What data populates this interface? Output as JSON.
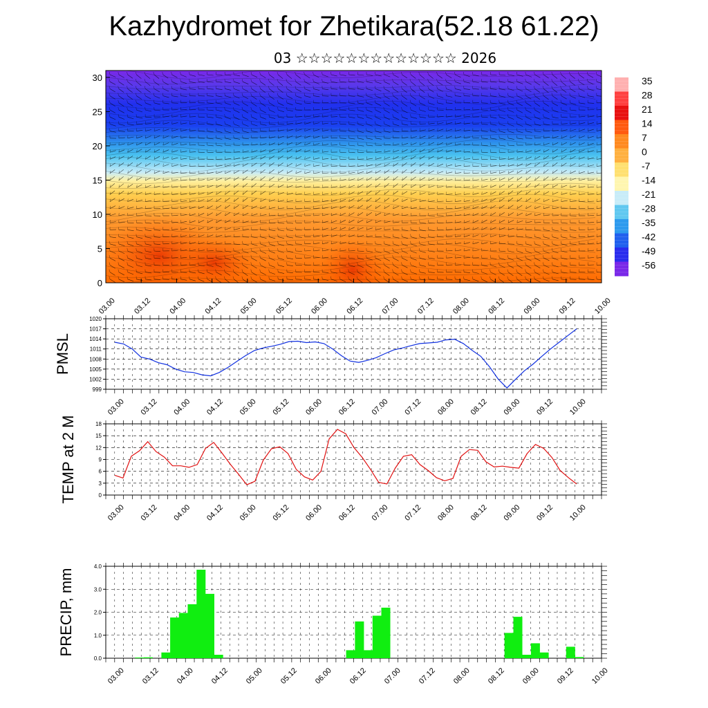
{
  "header": {
    "title": "Kazhydromet for Zhetikara(52.18 61.22)",
    "subtitle": "03 ☆☆☆☆☆☆☆☆☆☆☆☆☆ 2026"
  },
  "chart_data": [
    {
      "type": "heatmap",
      "description_panel": "upper-air temperature cross-section with wind barbs",
      "x_ticks": [
        "03.00",
        "03.12",
        "04.00",
        "04.12",
        "05.00",
        "05.12",
        "06.00",
        "06.12",
        "07.00",
        "07.12",
        "08.00",
        "08.12",
        "09.00",
        "09.12",
        "10.00"
      ],
      "y_ticks": [
        "0",
        "5",
        "10",
        "15",
        "20",
        "25",
        "30"
      ],
      "ylim": [
        0,
        31
      ],
      "colorbar_labels": [
        "35",
        "28",
        "21",
        "14",
        "7",
        "0",
        "-7",
        "-14",
        "-21",
        "-28",
        "-35",
        "-42",
        "-49",
        "-56"
      ],
      "colors": {
        "warm": "#ff7a10",
        "yellow": "#ffe070",
        "cool": "#29a8ee",
        "cold": "#2033ee",
        "coldest": "#7a28e8"
      }
    },
    {
      "type": "line",
      "ylabel": "PMSL",
      "ylim": [
        999,
        1020
      ],
      "y_ticks": [
        "999",
        "1002",
        "1005",
        "1008",
        "1011",
        "1014",
        "1017",
        "1020"
      ],
      "x_ticks": [
        "03.00",
        "03.12",
        "04.00",
        "04.12",
        "05.00",
        "05.12",
        "06.00",
        "06.12",
        "07.00",
        "07.12",
        "08.00",
        "08.12",
        "09.00",
        "09.12",
        "10.00"
      ],
      "color": "#1030e0",
      "series": [
        {
          "values": [
            1013.0,
            1012.5,
            1011.0,
            1008.6,
            1008.0,
            1006.9,
            1006.3,
            1005.0,
            1004.2,
            1004.0,
            1003.3,
            1003.0,
            1004.0,
            1005.5,
            1007.3,
            1009.0,
            1010.5,
            1011.3,
            1011.8,
            1012.4,
            1013.2,
            1013.3,
            1012.9,
            1013.1,
            1012.6,
            1011.0,
            1009.0,
            1007.4,
            1007.0,
            1007.6,
            1008.4,
            1009.6,
            1010.7,
            1011.3,
            1012.0,
            1012.6,
            1012.8,
            1013.0,
            1013.7,
            1013.9,
            1012.6,
            1010.6,
            1008.8,
            1005.7,
            1002.0,
            999.4,
            1002.0,
            1004.5,
            1006.5,
            1008.8,
            1011.0,
            1013.0,
            1015.0,
            1017.0
          ]
        }
      ]
    },
    {
      "type": "line",
      "ylabel": "TEMP at 2 M",
      "ylim": [
        0,
        18
      ],
      "y_ticks": [
        "0",
        "3",
        "6",
        "9",
        "12",
        "15",
        "18"
      ],
      "x_ticks": [
        "03.00",
        "03.12",
        "04.00",
        "04.12",
        "05.00",
        "05.12",
        "06.00",
        "06.12",
        "07.00",
        "07.12",
        "08.00",
        "08.12",
        "09.00",
        "09.12",
        "10.00"
      ],
      "color": "#e01010",
      "series": [
        {
          "values": [
            5.0,
            4.3,
            9.8,
            11.2,
            13.5,
            11.0,
            9.6,
            7.4,
            7.4,
            7.0,
            7.7,
            11.8,
            13.3,
            10.6,
            7.8,
            5.3,
            2.6,
            3.5,
            8.8,
            11.7,
            12.2,
            10.5,
            6.5,
            4.6,
            3.8,
            6.0,
            14.2,
            16.6,
            15.5,
            12.0,
            9.5,
            6.5,
            3.2,
            2.8,
            6.8,
            9.8,
            10.2,
            7.7,
            6.2,
            4.4,
            3.6,
            4.2,
            9.8,
            11.5,
            11.3,
            8.4,
            7.1,
            7.3,
            7.0,
            6.8,
            10.5,
            12.8,
            11.8,
            9.5,
            6.2,
            4.4,
            2.8
          ]
        }
      ]
    },
    {
      "type": "bar",
      "ylabel": "PRECIP, mm",
      "ylim": [
        0,
        4
      ],
      "y_ticks": [
        "0.0",
        "1.0",
        "2.0",
        "3.0",
        "4.0"
      ],
      "x_ticks": [
        "03.00",
        "03.12",
        "04.00",
        "04.12",
        "05.00",
        "05.12",
        "06.00",
        "06.12",
        "07.00",
        "07.12",
        "08.00",
        "08.12",
        "09.00",
        "09.12",
        "10.00"
      ],
      "color": "#10ee10",
      "series": [
        {
          "values": [
            0,
            0,
            0,
            0.03,
            0.04,
            0,
            0.25,
            1.77,
            1.97,
            2.35,
            3.85,
            2.8,
            0.15,
            0,
            0,
            0,
            0,
            0,
            0,
            0,
            0,
            0,
            0,
            0,
            0,
            0,
            0,
            0.35,
            1.6,
            0.35,
            1.85,
            2.2,
            0,
            0,
            0,
            0,
            0,
            0,
            0,
            0,
            0,
            0,
            0,
            0,
            0,
            1.1,
            1.8,
            0.15,
            0.65,
            0.25,
            0,
            0,
            0.5,
            0.05,
            0
          ]
        }
      ]
    }
  ]
}
